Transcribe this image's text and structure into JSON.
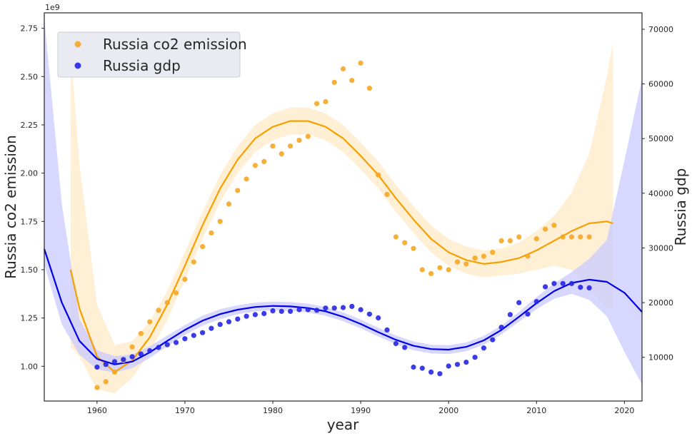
{
  "chart_data": {
    "type": "scatter",
    "xlabel": "year",
    "ylabel_left": "Russia co2 emission",
    "ylabel_right": "Russia gdp",
    "left_axis_offset_label": "1e9",
    "xlim": [
      1954,
      2022
    ],
    "ylim_left": [
      0.82,
      2.83
    ],
    "ylim_right": [
      2000,
      73000
    ],
    "x_ticks": [
      1960,
      1970,
      1980,
      1990,
      2000,
      2010,
      2020
    ],
    "y_left_ticks": [
      "1.00",
      "1.25",
      "1.50",
      "1.75",
      "2.00",
      "2.25",
      "2.50",
      "2.75"
    ],
    "y_right_ticks": [
      "10000",
      "20000",
      "30000",
      "40000",
      "50000",
      "60000",
      "70000"
    ],
    "grid": false,
    "legend_position": "top-left",
    "series": [
      {
        "name": "Russia co2 emission",
        "axis": "left",
        "color": "#f5a623",
        "points": [
          [
            1960,
            0.89
          ],
          [
            1961,
            0.92
          ],
          [
            1962,
            0.97
          ],
          [
            1963,
            1.03
          ],
          [
            1964,
            1.1
          ],
          [
            1965,
            1.17
          ],
          [
            1966,
            1.23
          ],
          [
            1967,
            1.29
          ],
          [
            1968,
            1.33
          ],
          [
            1969,
            1.38
          ],
          [
            1970,
            1.45
          ],
          [
            1971,
            1.54
          ],
          [
            1972,
            1.62
          ],
          [
            1973,
            1.69
          ],
          [
            1974,
            1.75
          ],
          [
            1975,
            1.84
          ],
          [
            1976,
            1.91
          ],
          [
            1977,
            1.97
          ],
          [
            1978,
            2.04
          ],
          [
            1979,
            2.06
          ],
          [
            1980,
            2.14
          ],
          [
            1981,
            2.1
          ],
          [
            1982,
            2.14
          ],
          [
            1983,
            2.17
          ],
          [
            1984,
            2.19
          ],
          [
            1985,
            2.36
          ],
          [
            1986,
            2.37
          ],
          [
            1987,
            2.47
          ],
          [
            1988,
            2.54
          ],
          [
            1989,
            2.48
          ],
          [
            1990,
            2.57
          ],
          [
            1991,
            2.44
          ],
          [
            1992,
            1.99
          ],
          [
            1993,
            1.89
          ],
          [
            1994,
            1.67
          ],
          [
            1995,
            1.64
          ],
          [
            1996,
            1.61
          ],
          [
            1997,
            1.5
          ],
          [
            1998,
            1.48
          ],
          [
            1999,
            1.51
          ],
          [
            2000,
            1.5
          ],
          [
            2001,
            1.54
          ],
          [
            2002,
            1.53
          ],
          [
            2003,
            1.56
          ],
          [
            2004,
            1.57
          ],
          [
            2005,
            1.59
          ],
          [
            2006,
            1.65
          ],
          [
            2007,
            1.65
          ],
          [
            2008,
            1.67
          ],
          [
            2009,
            1.57
          ],
          [
            2010,
            1.66
          ],
          [
            2011,
            1.71
          ],
          [
            2012,
            1.73
          ],
          [
            2013,
            1.67
          ],
          [
            2014,
            1.67
          ],
          [
            2015,
            1.67
          ],
          [
            2016,
            1.67
          ]
        ],
        "fit": [
          [
            1957,
            1.5
          ],
          [
            1958,
            1.3
          ],
          [
            1960,
            1.05
          ],
          [
            1962,
            0.97
          ],
          [
            1964,
            1.03
          ],
          [
            1966,
            1.15
          ],
          [
            1968,
            1.32
          ],
          [
            1970,
            1.52
          ],
          [
            1972,
            1.73
          ],
          [
            1974,
            1.92
          ],
          [
            1976,
            2.07
          ],
          [
            1978,
            2.18
          ],
          [
            1980,
            2.24
          ],
          [
            1982,
            2.27
          ],
          [
            1984,
            2.27
          ],
          [
            1986,
            2.24
          ],
          [
            1988,
            2.18
          ],
          [
            1990,
            2.09
          ],
          [
            1992,
            1.99
          ],
          [
            1994,
            1.87
          ],
          [
            1996,
            1.76
          ],
          [
            1998,
            1.66
          ],
          [
            2000,
            1.59
          ],
          [
            2002,
            1.55
          ],
          [
            2004,
            1.53
          ],
          [
            2006,
            1.54
          ],
          [
            2008,
            1.56
          ],
          [
            2010,
            1.6
          ],
          [
            2012,
            1.65
          ],
          [
            2014,
            1.7
          ],
          [
            2016,
            1.74
          ],
          [
            2018,
            1.75
          ],
          [
            2018.7,
            1.74
          ]
        ],
        "band": [
          [
            1957,
            1.1,
            2.65
          ],
          [
            1958,
            1.05,
            2.05
          ],
          [
            1960,
            0.88,
            1.32
          ],
          [
            1962,
            0.86,
            1.11
          ],
          [
            1964,
            0.94,
            1.13
          ],
          [
            1966,
            1.07,
            1.23
          ],
          [
            1968,
            1.24,
            1.39
          ],
          [
            1970,
            1.45,
            1.59
          ],
          [
            1972,
            1.66,
            1.8
          ],
          [
            1974,
            1.85,
            1.99
          ],
          [
            1976,
            2.0,
            2.14
          ],
          [
            1978,
            2.11,
            2.25
          ],
          [
            1980,
            2.17,
            2.31
          ],
          [
            1982,
            2.2,
            2.34
          ],
          [
            1984,
            2.2,
            2.34
          ],
          [
            1986,
            2.17,
            2.31
          ],
          [
            1988,
            2.11,
            2.25
          ],
          [
            1990,
            2.02,
            2.16
          ],
          [
            1992,
            1.92,
            2.06
          ],
          [
            1994,
            1.8,
            1.94
          ],
          [
            1996,
            1.69,
            1.83
          ],
          [
            1998,
            1.59,
            1.73
          ],
          [
            2000,
            1.52,
            1.66
          ],
          [
            2002,
            1.48,
            1.62
          ],
          [
            2004,
            1.46,
            1.6
          ],
          [
            2006,
            1.47,
            1.61
          ],
          [
            2008,
            1.48,
            1.64
          ],
          [
            2010,
            1.5,
            1.7
          ],
          [
            2012,
            1.52,
            1.78
          ],
          [
            2014,
            1.5,
            1.9
          ],
          [
            2016,
            1.4,
            2.1
          ],
          [
            2018,
            1.3,
            2.5
          ],
          [
            2018.7,
            1.3,
            2.68
          ]
        ]
      },
      {
        "name": "Russia gdp",
        "axis": "right",
        "color": "#2626e6",
        "points": [
          [
            1960,
            8200
          ],
          [
            1961,
            8700
          ],
          [
            1962,
            9200
          ],
          [
            1963,
            9600
          ],
          [
            1964,
            10100
          ],
          [
            1965,
            10600
          ],
          [
            1966,
            11200
          ],
          [
            1967,
            11800
          ],
          [
            1968,
            12300
          ],
          [
            1969,
            12700
          ],
          [
            1970,
            13400
          ],
          [
            1971,
            14000
          ],
          [
            1972,
            14500
          ],
          [
            1973,
            15300
          ],
          [
            1974,
            16000
          ],
          [
            1975,
            16500
          ],
          [
            1976,
            17000
          ],
          [
            1977,
            17500
          ],
          [
            1978,
            17800
          ],
          [
            1979,
            18000
          ],
          [
            1980,
            18500
          ],
          [
            1981,
            18400
          ],
          [
            1982,
            18400
          ],
          [
            1983,
            18700
          ],
          [
            1984,
            18700
          ],
          [
            1985,
            18600
          ],
          [
            1986,
            19000
          ],
          [
            1987,
            19000
          ],
          [
            1988,
            19100
          ],
          [
            1989,
            19300
          ],
          [
            1990,
            18700
          ],
          [
            1991,
            17900
          ],
          [
            1992,
            17200
          ],
          [
            1993,
            15000
          ],
          [
            1994,
            12500
          ],
          [
            1995,
            11800
          ],
          [
            1996,
            8200
          ],
          [
            1997,
            8000
          ],
          [
            1998,
            7300
          ],
          [
            1999,
            7000
          ],
          [
            2000,
            8400
          ],
          [
            2001,
            8700
          ],
          [
            2002,
            9100
          ],
          [
            2003,
            10000
          ],
          [
            2004,
            11700
          ],
          [
            2005,
            13200
          ],
          [
            2006,
            15500
          ],
          [
            2007,
            17800
          ],
          [
            2008,
            20000
          ],
          [
            2009,
            17900
          ],
          [
            2010,
            20200
          ],
          [
            2011,
            22900
          ],
          [
            2012,
            23500
          ],
          [
            2013,
            23500
          ],
          [
            2014,
            23500
          ],
          [
            2015,
            22800
          ],
          [
            2016,
            22700
          ]
        ],
        "fit": [
          [
            1954,
            29800
          ],
          [
            1956,
            20000
          ],
          [
            1958,
            13000
          ],
          [
            1960,
            9700
          ],
          [
            1962,
            8700
          ],
          [
            1964,
            9200
          ],
          [
            1966,
            10900
          ],
          [
            1968,
            13000
          ],
          [
            1970,
            15000
          ],
          [
            1972,
            16700
          ],
          [
            1974,
            17900
          ],
          [
            1976,
            18700
          ],
          [
            1978,
            19200
          ],
          [
            1980,
            19400
          ],
          [
            1982,
            19300
          ],
          [
            1984,
            19000
          ],
          [
            1986,
            18400
          ],
          [
            1988,
            17400
          ],
          [
            1990,
            16100
          ],
          [
            1992,
            14600
          ],
          [
            1994,
            13200
          ],
          [
            1996,
            12100
          ],
          [
            1998,
            11500
          ],
          [
            2000,
            11400
          ],
          [
            2002,
            11900
          ],
          [
            2004,
            13100
          ],
          [
            2006,
            15000
          ],
          [
            2008,
            17400
          ],
          [
            2010,
            19900
          ],
          [
            2012,
            22100
          ],
          [
            2014,
            23600
          ],
          [
            2016,
            24200
          ],
          [
            2018,
            23800
          ],
          [
            2020,
            21800
          ],
          [
            2022,
            18300
          ]
        ],
        "band": [
          [
            1954,
            27000,
            72000
          ],
          [
            1956,
            16000,
            38000
          ],
          [
            1958,
            10500,
            17000
          ],
          [
            1960,
            7800,
            11300
          ],
          [
            1962,
            7200,
            10200
          ],
          [
            1964,
            8000,
            10500
          ],
          [
            1966,
            9900,
            12000
          ],
          [
            1968,
            12000,
            14000
          ],
          [
            1970,
            14100,
            15900
          ],
          [
            1972,
            15800,
            17600
          ],
          [
            1974,
            17000,
            18800
          ],
          [
            1976,
            17900,
            19500
          ],
          [
            1978,
            18400,
            20000
          ],
          [
            1980,
            18600,
            20200
          ],
          [
            1982,
            18500,
            20100
          ],
          [
            1984,
            18200,
            19800
          ],
          [
            1986,
            17600,
            19200
          ],
          [
            1988,
            16600,
            18200
          ],
          [
            1990,
            15300,
            16900
          ],
          [
            1992,
            13800,
            15400
          ],
          [
            1994,
            12400,
            14000
          ],
          [
            1996,
            11300,
            12900
          ],
          [
            1998,
            10700,
            12300
          ],
          [
            2000,
            10600,
            12200
          ],
          [
            2002,
            11100,
            12700
          ],
          [
            2004,
            12300,
            13900
          ],
          [
            2006,
            14200,
            15800
          ],
          [
            2008,
            16500,
            18300
          ],
          [
            2010,
            18800,
            21000
          ],
          [
            2012,
            20700,
            23500
          ],
          [
            2014,
            21600,
            25600
          ],
          [
            2016,
            20500,
            28000
          ],
          [
            2018,
            17500,
            31500
          ],
          [
            2020,
            11000,
            46000
          ],
          [
            2022,
            5000,
            61000
          ]
        ]
      }
    ]
  }
}
